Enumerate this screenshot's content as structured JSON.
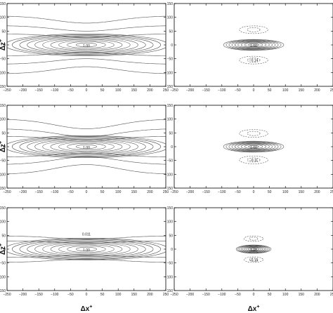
{
  "figure": {
    "y_axis_label_base": "Δz",
    "y_axis_label_sup": "+",
    "x_axis_label_base": "Δx",
    "x_axis_label_sup": "+"
  },
  "chart_data": [
    {
      "type": "contour",
      "row": 1,
      "col": 1,
      "xlim": [
        -250,
        250
      ],
      "ylim": [
        -150,
        150
      ],
      "xticks": [
        "−250",
        "−200",
        "−150",
        "−100",
        "−50",
        "0",
        "50",
        "100",
        "150",
        "200",
        "250"
      ],
      "yticks": [
        "150",
        "100",
        "50",
        "0",
        "−50",
        "−100",
        "−150"
      ],
      "annotations": [
        {
          "text": "1.00",
          "x": 0,
          "y": -3
        }
      ],
      "positive_levels": [
        0.9,
        0.8,
        0.7,
        0.6,
        0.5,
        0.4,
        0.3,
        0.2,
        0.1,
        0.05
      ],
      "negative_levels": [],
      "far_contours": [
        {
          "y": 40,
          "amp": 12
        },
        {
          "y": 70,
          "amp": 20
        },
        {
          "y": 105,
          "amp": 26
        },
        {
          "y": -40,
          "amp": -12
        },
        {
          "y": -70,
          "amp": -20
        },
        {
          "y": -105,
          "amp": -26
        }
      ]
    },
    {
      "type": "contour",
      "row": 1,
      "col": 2,
      "xlim": [
        -250,
        250
      ],
      "ylim": [
        -150,
        150
      ],
      "xticks": [
        "−250",
        "−200",
        "−150",
        "−100",
        "−50",
        "0",
        "50",
        "100",
        "150",
        "200",
        "250"
      ],
      "yticks": [
        "150",
        "100",
        "50",
        "0",
        "−50",
        "−100",
        "−150"
      ],
      "annotations": [
        {
          "text": "1.00",
          "x": 0,
          "y": -3
        },
        {
          "text": "−0.14",
          "x": 0,
          "y": -55
        }
      ],
      "positive_levels": [
        0.9,
        0.8,
        0.7,
        0.6,
        0.5,
        0.4,
        0.3,
        0.2,
        0.1
      ],
      "negative_levels": [
        -0.1,
        -0.05
      ],
      "negative_centers": [
        55,
        -55
      ]
    },
    {
      "type": "contour",
      "row": 2,
      "col": 1,
      "xlim": [
        -250,
        250
      ],
      "ylim": [
        -150,
        150
      ],
      "xticks": [
        "−250",
        "−200",
        "−150",
        "−100",
        "−50",
        "0",
        "50",
        "100",
        "150",
        "200",
        "250"
      ],
      "yticks": [
        "150",
        "100",
        "50",
        "0",
        "−50",
        "−100",
        "−150"
      ],
      "annotations": [
        {
          "text": "1.00",
          "x": 0,
          "y": -3
        }
      ],
      "positive_levels": [
        0.9,
        0.8,
        0.7,
        0.6,
        0.5,
        0.4,
        0.3,
        0.2,
        0.1,
        0.05
      ],
      "negative_levels": [],
      "far_contours": [
        {
          "y": 38,
          "amp": 15
        },
        {
          "y": 65,
          "amp": 28
        },
        {
          "y": 100,
          "amp": 35
        },
        {
          "y": -38,
          "amp": -15
        },
        {
          "y": -65,
          "amp": -28
        },
        {
          "y": -100,
          "amp": -35
        }
      ]
    },
    {
      "type": "contour",
      "row": 2,
      "col": 2,
      "xlim": [
        -250,
        250
      ],
      "ylim": [
        -150,
        150
      ],
      "xticks": [
        "−250",
        "−200",
        "−150",
        "−100",
        "−50",
        "0",
        "50",
        "100",
        "150",
        "200",
        "250"
      ],
      "yticks": [
        "150",
        "100",
        "50",
        "0",
        "−50",
        "−100",
        "−150"
      ],
      "annotations": [
        {
          "text": "1.00",
          "x": 0,
          "y": -3
        },
        {
          "text": "−0.11",
          "x": 0,
          "y": -48
        }
      ],
      "positive_levels": [
        0.9,
        0.8,
        0.7,
        0.6,
        0.5,
        0.4,
        0.3,
        0.2,
        0.1
      ],
      "negative_levels": [
        -0.1,
        -0.05
      ],
      "negative_centers": [
        48,
        -48
      ]
    },
    {
      "type": "contour",
      "row": 3,
      "col": 1,
      "xlim": [
        -250,
        250
      ],
      "ylim": [
        -150,
        150
      ],
      "xticks": [
        "−250",
        "−200",
        "−150",
        "−100",
        "−50",
        "0",
        "50",
        "100",
        "150",
        "200",
        "250"
      ],
      "yticks": [
        "150",
        "100",
        "50",
        "0",
        "−50",
        "−100",
        "−150"
      ],
      "annotations": [
        {
          "text": "1.00",
          "x": 0,
          "y": -3
        },
        {
          "text": "0.011",
          "x": 0,
          "y": 55
        }
      ],
      "positive_levels": [
        0.9,
        0.8,
        0.7,
        0.6,
        0.5,
        0.4,
        0.3,
        0.2,
        0.1,
        0.05
      ],
      "negative_levels": [],
      "far_contours": [
        {
          "y": 30,
          "amp": 8
        },
        {
          "y": 48,
          "amp": 12
        },
        {
          "y": -30,
          "amp": -8
        },
        {
          "y": -48,
          "amp": -12
        }
      ]
    },
    {
      "type": "contour",
      "row": 3,
      "col": 2,
      "xlim": [
        -250,
        250
      ],
      "ylim": [
        -150,
        150
      ],
      "xticks": [
        "−250",
        "−200",
        "−150",
        "−100",
        "−50",
        "0",
        "50",
        "100",
        "150",
        "200",
        "250"
      ],
      "yticks": [
        "150",
        "100",
        "50",
        "0",
        "−50",
        "−100",
        "−150"
      ],
      "annotations": [
        {
          "text": "1.00",
          "x": 0,
          "y": -3
        },
        {
          "text": "−0.15",
          "x": 0,
          "y": -40
        }
      ],
      "positive_levels": [
        0.9,
        0.8,
        0.7,
        0.6,
        0.5,
        0.4,
        0.3,
        0.2,
        0.1
      ],
      "negative_levels": [
        -0.1,
        -0.05
      ],
      "negative_centers": [
        38,
        -38
      ]
    }
  ]
}
